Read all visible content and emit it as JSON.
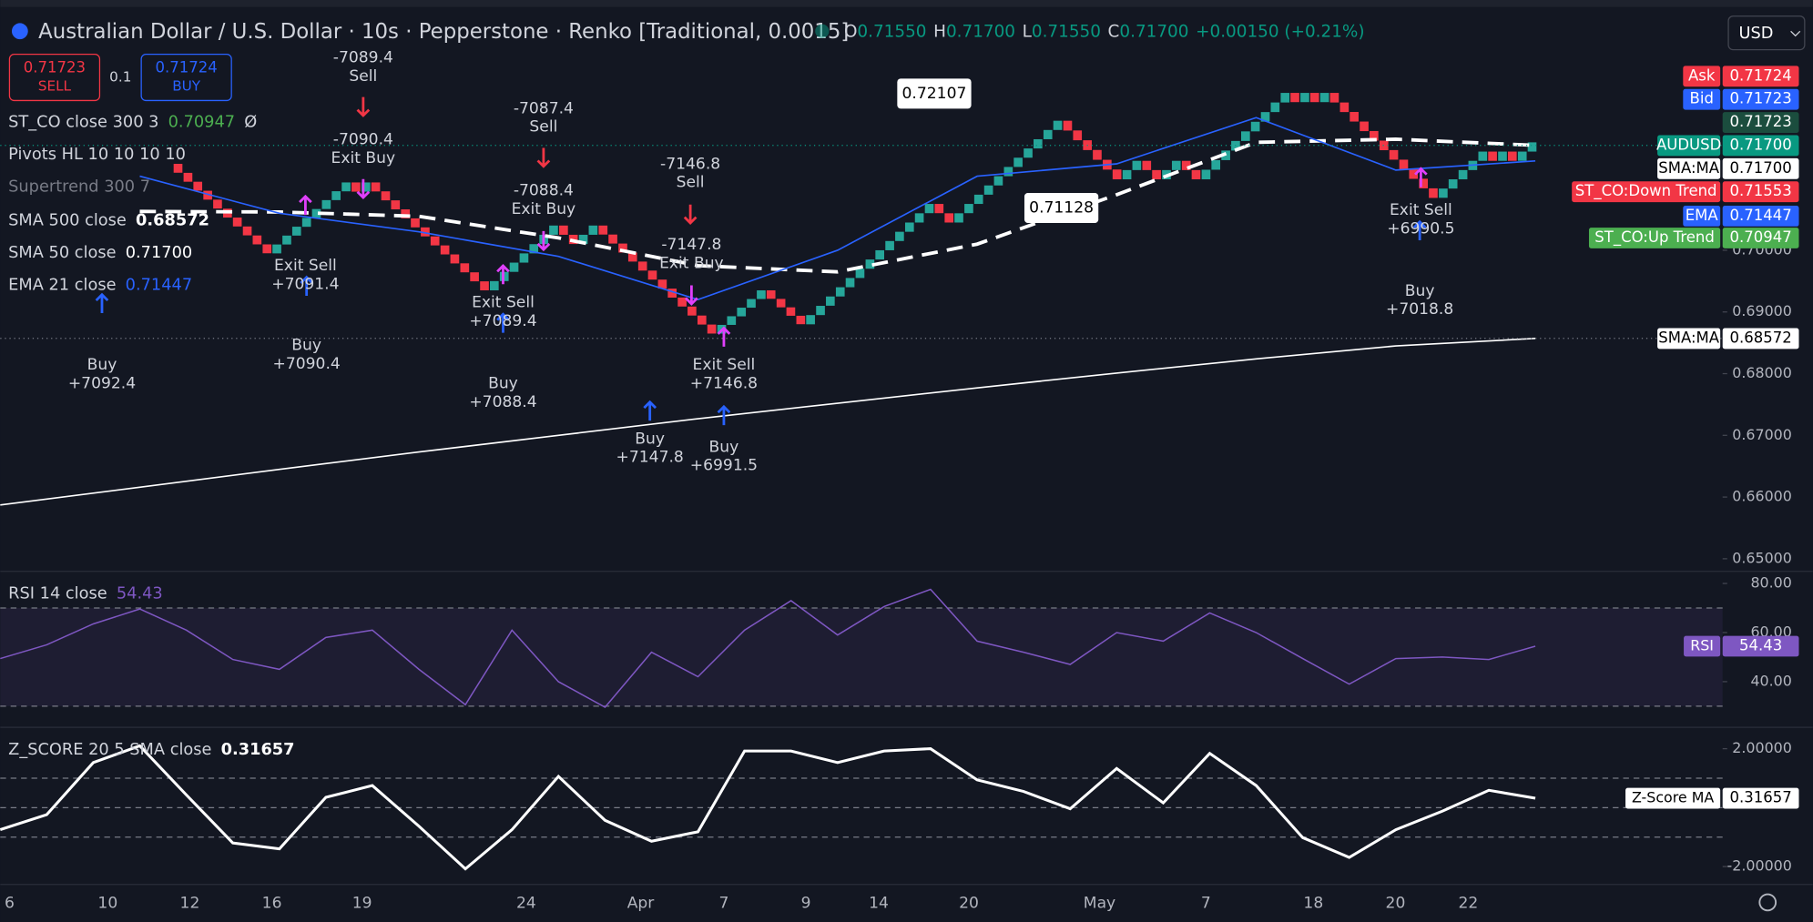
{
  "header": {
    "title": "Australian Dollar / U.S. Dollar · 10s · Pepperstone · Renko [Traditional, 0.0015]",
    "ohlc": [
      {
        "key": "O",
        "value": "0.71550"
      },
      {
        "key": "H",
        "value": "0.71700"
      },
      {
        "key": "L",
        "value": "0.71550"
      },
      {
        "key": "C",
        "value": "0.71700"
      }
    ],
    "change": "+0.00150 (+0.21%)",
    "currency": "USD"
  },
  "order_panel": {
    "sell_price": "0.71723",
    "sell": "SELL",
    "quantity": "0.1",
    "buy_price": "0.71724",
    "buy": "BUY"
  },
  "indicators": [
    {
      "name": "ST_CO close 300 3",
      "value": "0.70947",
      "extra": "Ø"
    },
    {
      "name": "Pivots HL 10 10 10 10"
    },
    {
      "name": "Supertrend 300 7"
    }
  ],
  "chart_data": [
    {
      "type": "renko",
      "brick_size": 0.0015,
      "up_color": "#26a69a",
      "down_color": "#f23645",
      "pivots": [
        0.714,
        0.6995,
        0.711,
        0.7095,
        0.711,
        0.6935,
        0.704,
        0.701,
        0.704,
        0.6865,
        0.6935,
        0.688,
        0.7075,
        0.7045,
        0.721,
        0.7115,
        0.7145,
        0.7115,
        0.7145,
        0.7115,
        0.7255,
        0.724,
        0.7255,
        0.724,
        0.7255,
        0.7085,
        0.716,
        0.7145,
        0.716,
        0.7145,
        0.7175
      ],
      "series": [
        {
          "name": "SMA 500 close",
          "color": "#ffffff",
          "style": "solid",
          "values": [
            0.6587,
            0.6616,
            0.6645,
            0.6673,
            0.67,
            0.6727,
            0.6752,
            0.6777,
            0.6801,
            0.6824,
            0.6845,
            0.68572
          ],
          "last_label": "0.68572"
        },
        {
          "name": "SMA 50 close",
          "color": "#ffffff",
          "style": "dashed",
          "values": [
            null,
            0.7063,
            0.7062,
            0.7055,
            0.702,
            0.6975,
            0.6965,
            0.701,
            0.709,
            0.7175,
            0.718,
            0.717
          ],
          "last_label": "0.71700"
        },
        {
          "name": "EMA 21 close",
          "color": "#2962ff",
          "style": "solid",
          "values": [
            null,
            0.712,
            0.706,
            0.703,
            0.699,
            0.692,
            0.7,
            0.712,
            0.714,
            0.7215,
            0.713,
            0.71447
          ],
          "last_label": "0.71447"
        }
      ],
      "ylim": [
        0.648052,
        0.740562
      ],
      "yticks": [
        {
          "value": 0.65,
          "label": "0.65000"
        },
        {
          "value": 0.66,
          "label": "0.66000"
        },
        {
          "value": 0.67,
          "label": "0.67000"
        },
        {
          "value": 0.68,
          "label": "0.68000"
        },
        {
          "value": 0.69,
          "label": "0.69000"
        },
        {
          "value": 0.7,
          "label": "0.70000"
        }
      ]
    },
    {
      "type": "line",
      "title": "RSI 14 close",
      "last_label": "54.43",
      "tag": "RSI",
      "color": "#7e57c2",
      "values": [
        49.4,
        55,
        63.5,
        69.6,
        61,
        49,
        45,
        58,
        61,
        45,
        30.6,
        61,
        40,
        29.6,
        52,
        42,
        61,
        73,
        59,
        70.6,
        77.6,
        56.5,
        52,
        47,
        60,
        56.5,
        68,
        60,
        49.4,
        39,
        49.4,
        50,
        49,
        54.43
      ],
      "band": [
        70,
        30
      ],
      "ylim": [
        22.1,
        84.7
      ],
      "yticks": [
        {
          "value": 80,
          "label": "80.00"
        },
        {
          "value": 60,
          "label": "60.00"
        },
        {
          "value": 40,
          "label": "40.00"
        }
      ]
    },
    {
      "type": "line",
      "title": "Z_SCORE 20 5 SMA close",
      "last_label": "0.31657",
      "tag": "Z-Score MA",
      "color": "#ffffff",
      "values": [
        -0.75,
        -0.24,
        1.53,
        2.1,
        0.43,
        -1.2,
        -1.4,
        0.35,
        0.75,
        -0.63,
        -2.08,
        -0.75,
        1.06,
        -0.43,
        -1.14,
        -0.82,
        1.92,
        1.92,
        1.53,
        1.92,
        2.0,
        0.94,
        0.55,
        -0.04,
        1.33,
        0.16,
        1.84,
        0.75,
        -1.02,
        -1.69,
        -0.75,
        -0.12,
        0.59,
        0.31657
      ],
      "levels": [
        1,
        0,
        -1
      ],
      "ylim": [
        -2.588,
        2.706
      ],
      "yticks": [
        {
          "value": 2,
          "label": "2.00000"
        },
        {
          "value": -2,
          "label": "-2.00000"
        }
      ]
    }
  ],
  "price_tags": [
    {
      "label": "Ask",
      "value": 0.71724,
      "value_label": "0.71724",
      "color": "#f23645"
    },
    {
      "label": "Bid",
      "value": 0.71723,
      "value_label": "0.71723",
      "color": "#2962ff"
    },
    {
      "value": 0.71723,
      "value_label": "0.71723",
      "color": "#1b4d3e"
    },
    {
      "label": "AUDUSD",
      "value": 0.717,
      "value_label": "0.71700",
      "color": "#089981"
    },
    {
      "label": "SMA:MA",
      "value": 0.717,
      "value_label": "0.71700",
      "color": "#ffffff"
    },
    {
      "label": "ST_CO:Down Trend",
      "value": 0.71553,
      "value_label": "0.71553",
      "color": "#f23645"
    },
    {
      "label": "EMA",
      "value": 0.71447,
      "value_label": "0.71447",
      "color": "#2962ff"
    },
    {
      "label": "ST_CO:Up Trend",
      "value": 0.70947,
      "value_label": "0.70947",
      "color": "#4caf50"
    },
    {
      "label": "SMA:MA",
      "value": 0.68572,
      "value_label": "0.68572",
      "color": "#ffffff"
    }
  ],
  "time_axis": [
    "6",
    "10",
    "12",
    "16",
    "19",
    "24",
    "Apr",
    "7",
    "9",
    "14",
    "20",
    "May",
    "7",
    "18",
    "20",
    "22"
  ],
  "annotations": [
    {
      "kind": "buy",
      "lines": [
        "Buy",
        "+7092.4"
      ]
    },
    {
      "kind": "buy",
      "lines": [
        "Buy",
        "+7090.4"
      ]
    },
    {
      "kind": "buy",
      "lines": [
        "Buy",
        "+7088.4"
      ]
    },
    {
      "kind": "buy",
      "lines": [
        "Buy",
        "+7147.8"
      ]
    },
    {
      "kind": "buy",
      "lines": [
        "Buy",
        "+6991.5"
      ]
    },
    {
      "kind": "buy",
      "lines": [
        "Buy",
        "+7018.8"
      ]
    },
    {
      "kind": "sell",
      "lines": [
        "-7089.4",
        "Sell"
      ]
    },
    {
      "kind": "sell",
      "lines": [
        "-7087.4",
        "Sell"
      ]
    },
    {
      "kind": "sell",
      "lines": [
        "-7146.8",
        "Sell"
      ]
    },
    {
      "kind": "exit_buy",
      "lines": [
        "-7090.4",
        "Exit Buy"
      ]
    },
    {
      "kind": "exit_buy",
      "lines": [
        "-7088.4",
        "Exit Buy"
      ]
    },
    {
      "kind": "exit_buy",
      "lines": [
        "-7147.8",
        "Exit Buy"
      ]
    },
    {
      "kind": "exit_sell",
      "lines": [
        "Exit Sell",
        "+7091.4"
      ]
    },
    {
      "kind": "exit_sell",
      "lines": [
        "Exit Sell",
        "+7089.4"
      ]
    },
    {
      "kind": "exit_sell",
      "lines": [
        "Exit Sell",
        "+7146.8"
      ]
    },
    {
      "kind": "exit_sell",
      "lines": [
        "Exit Sell",
        "+6990.5"
      ]
    }
  ],
  "price_labels": [
    "0.72107",
    "0.71128"
  ]
}
